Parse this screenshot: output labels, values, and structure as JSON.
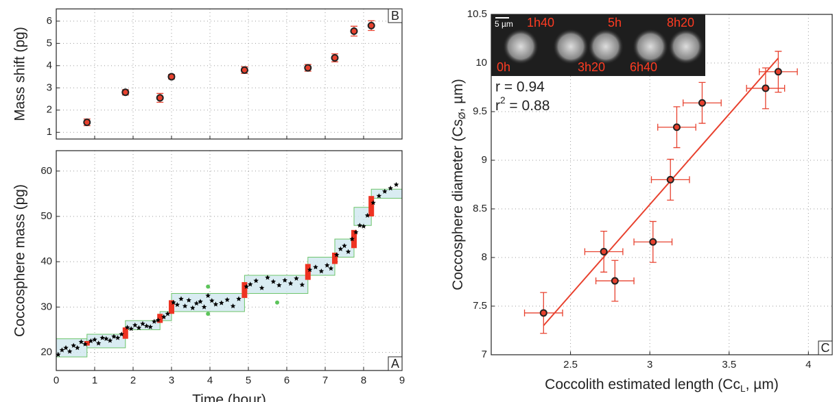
{
  "chart_data": [
    {
      "type": "scatter",
      "panel_label": "B",
      "ylabel": "Mass shift (pg)",
      "xlim": [
        0,
        9
      ],
      "ylim": [
        0.7,
        6.55
      ],
      "xticks": [
        0,
        1,
        2,
        3,
        4,
        5,
        6,
        7,
        8,
        9
      ],
      "yticks": [
        1,
        2,
        3,
        4,
        5,
        6
      ],
      "grid": true,
      "series": [
        {
          "color": "#e8412e",
          "x": [
            0.8,
            1.8,
            2.7,
            3.0,
            4.9,
            6.55,
            7.25,
            7.75,
            8.2
          ],
          "values": [
            1.45,
            2.8,
            2.55,
            3.5,
            3.8,
            3.9,
            4.35,
            5.55,
            5.8
          ],
          "errors": [
            0.15,
            0.12,
            0.2,
            0.1,
            0.15,
            0.15,
            0.18,
            0.22,
            0.22
          ]
        }
      ]
    },
    {
      "type": "scatter",
      "panel_label": "A",
      "xlabel": "Time (hour)",
      "ylabel": "Coccosphere mass (pg)",
      "xlim": [
        0,
        9
      ],
      "ylim": [
        16,
        64.5
      ],
      "xticks": [
        0,
        1,
        2,
        3,
        4,
        5,
        6,
        7,
        8,
        9
      ],
      "yticks": [
        20,
        30,
        40,
        50,
        60
      ],
      "grid": true,
      "steps": {
        "color": "#cfe7ef",
        "edge": "#6cc46a",
        "items": [
          {
            "start": 0,
            "end": 0.8,
            "low": 19,
            "high": 23
          },
          {
            "start": 0.8,
            "end": 1.8,
            "low": 21,
            "high": 24
          },
          {
            "start": 1.8,
            "end": 2.7,
            "low": 25,
            "high": 27
          },
          {
            "start": 2.7,
            "end": 3.0,
            "low": 27,
            "high": 29
          },
          {
            "start": 3.0,
            "end": 4.9,
            "low": 29,
            "high": 33
          },
          {
            "start": 4.9,
            "end": 6.55,
            "low": 33,
            "high": 37
          },
          {
            "start": 6.55,
            "end": 7.25,
            "low": 37,
            "high": 41
          },
          {
            "start": 7.25,
            "end": 7.75,
            "low": 41,
            "high": 45
          },
          {
            "start": 7.75,
            "end": 8.2,
            "low": 48,
            "high": 52
          },
          {
            "start": 8.2,
            "end": 9,
            "low": 54,
            "high": 56
          }
        ]
      },
      "transitions": {
        "color": "#ee3322",
        "items": [
          {
            "x": 0.8,
            "low": 21.5,
            "high": 22.5
          },
          {
            "x": 1.8,
            "low": 23,
            "high": 25.5
          },
          {
            "x": 2.7,
            "low": 26.5,
            "high": 28.5
          },
          {
            "x": 3.0,
            "low": 28.5,
            "high": 31.5
          },
          {
            "x": 4.9,
            "low": 32,
            "high": 35.5
          },
          {
            "x": 6.55,
            "low": 36,
            "high": 39.5
          },
          {
            "x": 7.25,
            "low": 39.5,
            "high": 42
          },
          {
            "x": 7.75,
            "low": 43,
            "high": 47
          },
          {
            "x": 8.2,
            "low": 50,
            "high": 54.5
          }
        ]
      },
      "series": [
        {
          "marker": "star",
          "color": "#000000",
          "x": [
            0.05,
            0.15,
            0.25,
            0.35,
            0.45,
            0.55,
            0.65,
            0.75,
            0.9,
            1.0,
            1.1,
            1.2,
            1.3,
            1.4,
            1.5,
            1.6,
            1.7,
            1.85,
            1.95,
            2.05,
            2.15,
            2.25,
            2.35,
            2.45,
            2.55,
            2.65,
            2.8,
            2.9,
            3.05,
            3.15,
            3.25,
            3.35,
            3.45,
            3.55,
            3.65,
            3.75,
            3.85,
            3.95,
            4.05,
            4.15,
            4.3,
            4.45,
            4.6,
            4.75,
            4.95,
            5.05,
            5.2,
            5.35,
            5.5,
            5.65,
            5.8,
            5.95,
            6.1,
            6.25,
            6.4,
            6.6,
            6.75,
            6.9,
            7.05,
            7.15,
            7.3,
            7.4,
            7.5,
            7.6,
            7.7,
            7.8,
            7.9,
            8.0,
            8.1,
            8.25,
            8.4,
            8.55,
            8.7,
            8.85
          ],
          "values": [
            19.5,
            20.5,
            21,
            20.2,
            21.5,
            21,
            22.3,
            21.8,
            22.5,
            22.8,
            22,
            23.2,
            23,
            22.6,
            23.5,
            23.2,
            24,
            25.5,
            25.2,
            26,
            25.4,
            26.3,
            25.8,
            25.6,
            26.8,
            27.1,
            27.8,
            28.5,
            31,
            30.5,
            31.8,
            30.2,
            31.5,
            29.8,
            30.8,
            31.2,
            30,
            32.5,
            31.4,
            30.6,
            30.9,
            31.6,
            30.2,
            31.8,
            34.5,
            35,
            35.8,
            34.2,
            36.5,
            35.6,
            34.8,
            35.9,
            35.2,
            36.3,
            34.9,
            38.2,
            38.8,
            37.9,
            39.2,
            38.5,
            41.5,
            42.8,
            43.5,
            42.2,
            45,
            46.5,
            48,
            47.8,
            50.2,
            53,
            54.5,
            55.5,
            56.2,
            57
          ]
        },
        {
          "marker": "dot",
          "color": "#5cc45a",
          "x": [
            3.95,
            3.95,
            5.75
          ],
          "values": [
            34.5,
            28.5,
            31
          ]
        }
      ]
    },
    {
      "type": "scatter",
      "panel_label": "C",
      "xlabel": {
        "text": "Coccolith estimated length (Cc",
        "sub": "L",
        "tail": ", µm)"
      },
      "ylabel": {
        "text": "Coccosphere diameter (Cs",
        "sub": "Ø",
        "tail": ", µm)"
      },
      "xlim": [
        2,
        4.15
      ],
      "ylim": [
        7,
        10.5
      ],
      "xticks": [
        2.5,
        3,
        3.5,
        4
      ],
      "yticks": [
        7,
        7.5,
        8,
        8.5,
        9,
        9.5,
        10,
        10.5
      ],
      "grid": true,
      "series": [
        {
          "color": "#e8412e",
          "x": [
            2.33,
            2.71,
            2.78,
            3.02,
            3.13,
            3.17,
            3.33,
            3.73,
            3.81
          ],
          "values": [
            7.43,
            8.06,
            7.76,
            8.16,
            8.8,
            9.34,
            9.59,
            9.74,
            9.91
          ],
          "errors": [
            0.21,
            0.21,
            0.21,
            0.21,
            0.21,
            0.21,
            0.21,
            0.21,
            0.21
          ],
          "x_errors": [
            0.12,
            0.12,
            0.12,
            0.12,
            0.12,
            0.12,
            0.12,
            0.12,
            0.12
          ]
        }
      ],
      "fit": {
        "color": "#e8412e",
        "x": [
          2.33,
          3.81
        ],
        "values": [
          7.3,
          10.05
        ]
      },
      "annotations": {
        "r": "r = 0.94",
        "r2": {
          "text": "r",
          "sup": "2",
          "tail": " = 0.88"
        }
      },
      "inset": {
        "scale": "5 µm",
        "times": [
          "0h",
          "1h40",
          "3h20",
          "5h",
          "6h40",
          "8h20"
        ]
      }
    }
  ]
}
